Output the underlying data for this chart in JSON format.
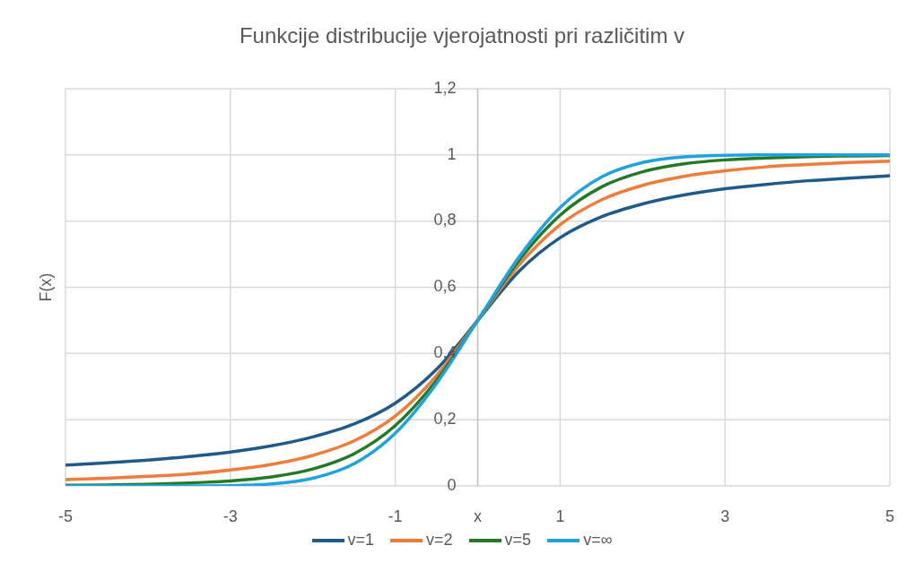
{
  "chart_data": {
    "type": "line",
    "title": "Funkcije distribucije vjerojatnosti pri različitim v",
    "xlabel": "x",
    "ylabel": "F(x)",
    "x": [
      -5,
      -4.5,
      -4,
      -3.5,
      -3,
      -2.5,
      -2,
      -1.5,
      -1,
      -0.5,
      0,
      0.5,
      1,
      1.5,
      2,
      2.5,
      3,
      3.5,
      4,
      4.5,
      5
    ],
    "series": [
      {
        "name": "v=1",
        "color": "#1f5b8a",
        "values": [
          0.063,
          0.07,
          0.078,
          0.089,
          0.102,
          0.121,
          0.148,
          0.187,
          0.25,
          0.352,
          0.5,
          0.648,
          0.75,
          0.813,
          0.852,
          0.879,
          0.898,
          0.911,
          0.922,
          0.93,
          0.937
        ]
      },
      {
        "name": "v=2",
        "color": "#ee7d3b",
        "values": [
          0.019,
          0.023,
          0.029,
          0.036,
          0.048,
          0.065,
          0.092,
          0.136,
          0.211,
          0.333,
          0.5,
          0.667,
          0.789,
          0.864,
          0.908,
          0.935,
          0.952,
          0.964,
          0.971,
          0.977,
          0.981
        ]
      },
      {
        "name": "v=5",
        "color": "#237a23",
        "values": [
          0.002,
          0.003,
          0.005,
          0.009,
          0.015,
          0.027,
          0.051,
          0.097,
          0.182,
          0.319,
          0.5,
          0.681,
          0.818,
          0.903,
          0.949,
          0.973,
          0.985,
          0.991,
          0.995,
          0.997,
          0.998
        ]
      },
      {
        "name": "v=∞",
        "color": "#1ea3e0",
        "values": [
          0,
          0,
          0,
          0,
          0.001,
          0.006,
          0.023,
          0.067,
          0.159,
          0.309,
          0.5,
          0.691,
          0.841,
          0.933,
          0.977,
          0.994,
          0.999,
          1,
          1,
          1,
          1
        ]
      }
    ],
    "xlim": [
      -5,
      5
    ],
    "xticks": [
      -5,
      -3,
      -1,
      1,
      3,
      5
    ],
    "ylim": [
      0,
      1.2
    ],
    "yticks": [
      0,
      {
        "value": 0.2,
        "label": "0,2"
      },
      {
        "value": 0.4,
        "label": "0,4"
      },
      {
        "value": 0.6,
        "label": "0,6"
      },
      {
        "value": 0.8,
        "label": "0,8"
      },
      1,
      {
        "value": 1.2,
        "label": "1,2"
      }
    ],
    "grid": true,
    "legend": "bottom"
  }
}
